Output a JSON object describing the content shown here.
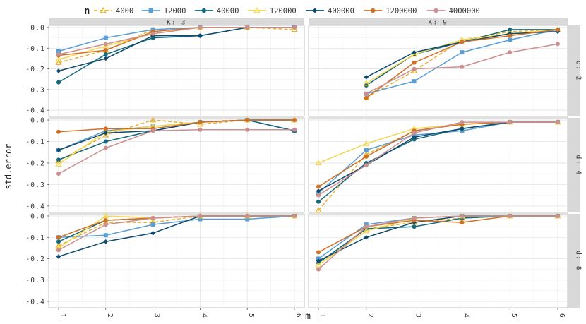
{
  "chart_data": {
    "type": "line",
    "title": "",
    "xlabel": "m",
    "ylabel": "std.error",
    "legend_title": "n",
    "legend_position": "top",
    "x": [
      1,
      2,
      3,
      4,
      5,
      6
    ],
    "x_tick_labels": [
      "1",
      "2",
      "3",
      "4",
      "5",
      "6"
    ],
    "ylim": [
      -0.43,
      0.01
    ],
    "y_ticks": [
      0.0,
      -0.1,
      -0.2,
      -0.3,
      -0.4
    ],
    "y_tick_labels": [
      "0.0",
      "-0.1",
      "-0.2",
      "-0.3",
      "-0.4"
    ],
    "series_styles": [
      {
        "name": "4000",
        "color": "#e8b030",
        "dashed": true,
        "marker": "triangle"
      },
      {
        "name": "12000",
        "color": "#5a9fd4",
        "dashed": false,
        "marker": "square"
      },
      {
        "name": "40000",
        "color": "#15697a",
        "dashed": false,
        "marker": "circle"
      },
      {
        "name": "120000",
        "color": "#f5d752",
        "dashed": false,
        "marker": "triangle"
      },
      {
        "name": "400000",
        "color": "#0d4a6e",
        "dashed": false,
        "marker": "diamond"
      },
      {
        "name": "1200000",
        "color": "#cf7127",
        "dashed": false,
        "marker": "circle"
      },
      {
        "name": "4000000",
        "color": "#cc8f90",
        "dashed": false,
        "marker": "circle"
      }
    ],
    "column_strips": [
      "K: 3",
      "K: 9"
    ],
    "row_strips": [
      "d: 2",
      "d: 4",
      "d: 8"
    ],
    "panels": [
      {
        "row": 0,
        "col": 0,
        "series": [
          {
            "name": "4000",
            "values": [
              -0.17,
              -0.11,
              -0.01,
              0.0,
              0.0,
              -0.01
            ]
          },
          {
            "name": "12000",
            "values": [
              -0.115,
              -0.05,
              -0.01,
              0.0,
              0.0,
              0.0
            ]
          },
          {
            "name": "40000",
            "values": [
              -0.265,
              -0.13,
              -0.05,
              -0.04,
              0.0,
              0.0
            ]
          },
          {
            "name": "120000",
            "values": [
              -0.155,
              -0.09,
              -0.03,
              0.0,
              0.0,
              0.0
            ]
          },
          {
            "name": "400000",
            "values": [
              -0.21,
              -0.15,
              -0.04,
              -0.04,
              0.0,
              0.0
            ]
          },
          {
            "name": "1200000",
            "values": [
              -0.135,
              -0.11,
              -0.02,
              0.0,
              0.0,
              0.0
            ]
          },
          {
            "name": "4000000",
            "values": [
              -0.13,
              -0.08,
              -0.03,
              0.0,
              0.0,
              0.0
            ]
          }
        ]
      },
      {
        "row": 0,
        "col": 1,
        "series": [
          {
            "name": "4000",
            "values": [
              null,
              -0.34,
              -0.21,
              -0.06,
              -0.02,
              -0.01
            ]
          },
          {
            "name": "12000",
            "values": [
              null,
              -0.32,
              -0.26,
              -0.12,
              -0.06,
              -0.01
            ]
          },
          {
            "name": "40000",
            "values": [
              null,
              -0.28,
              -0.13,
              -0.07,
              -0.01,
              -0.01
            ]
          },
          {
            "name": "120000",
            "values": [
              null,
              -0.27,
              -0.13,
              -0.06,
              -0.03,
              -0.01
            ]
          },
          {
            "name": "400000",
            "values": [
              null,
              -0.24,
              -0.12,
              -0.07,
              -0.03,
              -0.02
            ]
          },
          {
            "name": "1200000",
            "values": [
              null,
              -0.34,
              -0.17,
              -0.07,
              -0.04,
              -0.01
            ]
          },
          {
            "name": "4000000",
            "values": [
              null,
              -0.32,
              -0.2,
              -0.19,
              -0.12,
              -0.08
            ]
          }
        ]
      },
      {
        "row": 1,
        "col": 0,
        "series": [
          {
            "name": "4000",
            "values": [
              -0.19,
              -0.07,
              0.0,
              -0.02,
              0.0,
              0.0
            ]
          },
          {
            "name": "12000",
            "values": [
              -0.14,
              -0.05,
              -0.03,
              -0.01,
              0.0,
              -0.05
            ]
          },
          {
            "name": "40000",
            "values": [
              -0.185,
              -0.1,
              -0.05,
              -0.01,
              0.0,
              -0.05
            ]
          },
          {
            "name": "120000",
            "values": [
              -0.205,
              -0.055,
              -0.03,
              -0.01,
              0.0,
              0.0
            ]
          },
          {
            "name": "400000",
            "values": [
              -0.14,
              -0.06,
              -0.05,
              -0.01,
              0.0,
              0.0
            ]
          },
          {
            "name": "1200000",
            "values": [
              -0.055,
              -0.04,
              -0.04,
              -0.01,
              0.0,
              0.0
            ]
          },
          {
            "name": "4000000",
            "values": [
              -0.25,
              -0.13,
              -0.05,
              -0.045,
              -0.045,
              -0.045
            ]
          }
        ]
      },
      {
        "row": 1,
        "col": 1,
        "series": [
          {
            "name": "4000",
            "values": [
              -0.42,
              -0.16,
              -0.05,
              -0.02,
              -0.01,
              -0.01
            ]
          },
          {
            "name": "12000",
            "values": [
              -0.34,
              -0.14,
              -0.07,
              -0.05,
              -0.01,
              -0.01
            ]
          },
          {
            "name": "40000",
            "values": [
              -0.38,
              -0.2,
              -0.09,
              -0.04,
              -0.01,
              -0.01
            ]
          },
          {
            "name": "120000",
            "values": [
              -0.2,
              -0.11,
              -0.04,
              -0.02,
              -0.01,
              -0.01
            ]
          },
          {
            "name": "400000",
            "values": [
              -0.33,
              -0.21,
              -0.08,
              -0.04,
              -0.01,
              -0.01
            ]
          },
          {
            "name": "1200000",
            "values": [
              -0.31,
              -0.17,
              -0.05,
              -0.02,
              -0.01,
              -0.01
            ]
          },
          {
            "name": "4000000",
            "values": [
              -0.35,
              -0.21,
              -0.06,
              -0.01,
              -0.01,
              -0.01
            ]
          }
        ]
      },
      {
        "row": 2,
        "col": 0,
        "series": [
          {
            "name": "4000",
            "values": [
              -0.14,
              -0.03,
              -0.03,
              0.0,
              0.0,
              0.0
            ]
          },
          {
            "name": "12000",
            "values": [
              -0.1,
              -0.09,
              -0.04,
              -0.015,
              -0.015,
              0.0
            ]
          },
          {
            "name": "40000",
            "values": [
              -0.12,
              -0.02,
              -0.01,
              0.0,
              0.0,
              0.0
            ]
          },
          {
            "name": "120000",
            "values": [
              -0.15,
              0.0,
              -0.01,
              0.0,
              0.0,
              0.0
            ]
          },
          {
            "name": "400000",
            "values": [
              -0.19,
              -0.12,
              -0.08,
              0.0,
              0.0,
              0.0
            ]
          },
          {
            "name": "1200000",
            "values": [
              -0.1,
              -0.02,
              -0.01,
              0.0,
              0.0,
              0.0
            ]
          },
          {
            "name": "4000000",
            "values": [
              -0.16,
              -0.04,
              -0.01,
              0.0,
              0.0,
              0.0
            ]
          }
        ]
      },
      {
        "row": 2,
        "col": 1,
        "series": [
          {
            "name": "4000",
            "values": [
              -0.23,
              -0.06,
              -0.03,
              -0.01,
              0.0,
              0.0
            ]
          },
          {
            "name": "12000",
            "values": [
              -0.2,
              -0.04,
              -0.01,
              0.0,
              0.0,
              0.0
            ]
          },
          {
            "name": "40000",
            "values": [
              -0.22,
              -0.06,
              -0.05,
              -0.01,
              0.0,
              0.0
            ]
          },
          {
            "name": "120000",
            "values": [
              -0.23,
              -0.07,
              -0.01,
              0.0,
              0.0,
              0.0
            ]
          },
          {
            "name": "400000",
            "values": [
              -0.21,
              -0.1,
              -0.03,
              0.0,
              0.0,
              0.0
            ]
          },
          {
            "name": "1200000",
            "values": [
              -0.17,
              -0.05,
              -0.02,
              -0.03,
              0.0,
              0.0
            ]
          },
          {
            "name": "4000000",
            "values": [
              -0.25,
              -0.05,
              -0.01,
              0.0,
              0.0,
              0.0
            ]
          }
        ]
      }
    ]
  }
}
